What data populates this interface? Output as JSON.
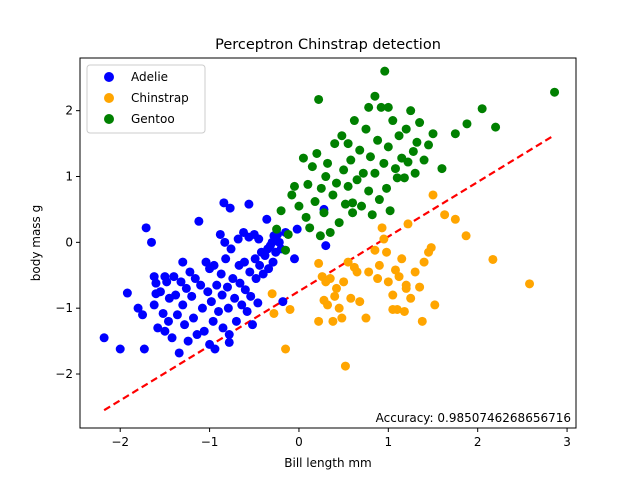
{
  "chart_data": {
    "type": "scatter",
    "title": "Perceptron Chinstrap detection",
    "xlabel": "Bill length mm",
    "ylabel": "body mass g",
    "xlim": [
      -2.45,
      3.1
    ],
    "ylim": [
      -2.82,
      2.8
    ],
    "xticks": [
      -2,
      -1,
      0,
      1,
      2,
      3
    ],
    "yticks": [
      -2,
      -1,
      0,
      1,
      2
    ],
    "tick_labels_x": [
      "−2",
      "−1",
      "0",
      "1",
      "2",
      "3"
    ],
    "tick_labels_y": [
      "−2",
      "−1",
      "0",
      "1",
      "2"
    ],
    "grid": false,
    "legend_placement": "top-left",
    "annotation": "Accuracy: 0.9850746268656716",
    "decision_line": {
      "x": [
        -2.18,
        2.86
      ],
      "y": [
        -2.55,
        1.63
      ],
      "color": "#ff0000",
      "style": "dashed"
    },
    "series": [
      {
        "name": "Adelie",
        "color": "#0000ff",
        "points": [
          [
            -2.18,
            -1.45
          ],
          [
            -2.0,
            -1.62
          ],
          [
            -1.92,
            -0.77
          ],
          [
            -1.8,
            -1.0
          ],
          [
            -1.75,
            -1.1
          ],
          [
            -1.73,
            -1.62
          ],
          [
            -1.71,
            0.22
          ],
          [
            -1.65,
            0.0
          ],
          [
            -1.62,
            -0.52
          ],
          [
            -1.62,
            -0.95
          ],
          [
            -1.6,
            -0.62
          ],
          [
            -1.58,
            -1.3
          ],
          [
            -1.55,
            -0.75
          ],
          [
            -1.52,
            -1.08
          ],
          [
            -1.5,
            -0.52
          ],
          [
            -1.5,
            -1.35
          ],
          [
            -1.48,
            -0.6
          ],
          [
            -1.46,
            -1.2
          ],
          [
            -1.45,
            -0.85
          ],
          [
            -1.42,
            -1.45
          ],
          [
            -1.4,
            -0.52
          ],
          [
            -1.38,
            -0.8
          ],
          [
            -1.36,
            -1.1
          ],
          [
            -1.34,
            -1.68
          ],
          [
            -1.32,
            -0.6
          ],
          [
            -1.3,
            -0.95
          ],
          [
            -1.28,
            -1.25
          ],
          [
            -1.26,
            -0.7
          ],
          [
            -1.24,
            -1.5
          ],
          [
            -1.22,
            -0.45
          ],
          [
            -1.2,
            -0.82
          ],
          [
            -1.18,
            -1.15
          ],
          [
            -1.16,
            -0.55
          ],
          [
            -1.14,
            -1.4
          ],
          [
            -1.12,
            0.32
          ],
          [
            -1.1,
            -0.65
          ],
          [
            -1.08,
            -1.0
          ],
          [
            -1.06,
            -1.35
          ],
          [
            -1.04,
            -0.3
          ],
          [
            -1.02,
            -0.75
          ],
          [
            -1.0,
            -1.55
          ],
          [
            -1.0,
            -0.4
          ],
          [
            -0.98,
            -0.9
          ],
          [
            -0.96,
            -1.2
          ],
          [
            -0.95,
            -0.35
          ],
          [
            -0.94,
            -1.62
          ],
          [
            -0.92,
            -0.65
          ],
          [
            -0.9,
            -1.05
          ],
          [
            -0.88,
            0.12
          ],
          [
            -0.87,
            -0.48
          ],
          [
            -0.86,
            -0.8
          ],
          [
            -0.85,
            -1.3
          ],
          [
            -0.84,
            0.6
          ],
          [
            -0.83,
            0.0
          ],
          [
            -0.82,
            -0.25
          ],
          [
            -0.8,
            -0.68
          ],
          [
            -0.79,
            -1.0
          ],
          [
            -0.78,
            -1.4
          ],
          [
            -0.77,
            0.52
          ],
          [
            -0.76,
            -0.1
          ],
          [
            -0.74,
            -0.55
          ],
          [
            -0.72,
            -0.85
          ],
          [
            -0.7,
            -1.2
          ],
          [
            -0.68,
            0.05
          ],
          [
            -0.67,
            -0.35
          ],
          [
            -0.66,
            -0.62
          ],
          [
            -0.64,
            -0.95
          ],
          [
            -0.62,
            0.15
          ],
          [
            -0.61,
            -0.3
          ],
          [
            -0.6,
            -0.72
          ],
          [
            -0.58,
            -1.05
          ],
          [
            -0.56,
            0.08
          ],
          [
            -0.55,
            -0.45
          ],
          [
            -0.54,
            -0.82
          ],
          [
            -0.52,
            -1.25
          ],
          [
            -0.5,
            0.12
          ],
          [
            -0.49,
            -0.25
          ],
          [
            -0.48,
            -0.55
          ],
          [
            -0.46,
            -0.92
          ],
          [
            -0.45,
            0.05
          ],
          [
            -0.44,
            -0.35
          ],
          [
            -0.42,
            -0.15
          ],
          [
            -0.4,
            -0.48
          ],
          [
            -0.38,
            -0.2
          ],
          [
            -0.36,
            0.35
          ],
          [
            -0.35,
            -0.1
          ],
          [
            -0.34,
            -0.4
          ],
          [
            -0.32,
            -0.05
          ],
          [
            -0.3,
            0.0
          ],
          [
            -0.29,
            -0.3
          ],
          [
            -0.28,
            0.1
          ],
          [
            -0.26,
            -0.15
          ],
          [
            -0.24,
            0.12
          ],
          [
            -0.22,
            0.0
          ],
          [
            -0.2,
            -0.1
          ],
          [
            -0.18,
            -0.9
          ],
          [
            -0.15,
            0.15
          ],
          [
            -0.05,
            -0.25
          ],
          [
            -0.02,
            0.2
          ],
          [
            0.28,
            0.5
          ],
          [
            0.3,
            -0.05
          ],
          [
            -0.78,
            -1.52
          ],
          [
            -0.56,
            0.58
          ],
          [
            -1.6,
            -0.78
          ],
          [
            -1.3,
            -0.3
          ]
        ]
      },
      {
        "name": "Chinstrap",
        "color": "#ffa500",
        "points": [
          [
            -0.3,
            -0.78
          ],
          [
            -0.28,
            -1.08
          ],
          [
            -0.15,
            -1.62
          ],
          [
            -0.1,
            -1.02
          ],
          [
            0.22,
            -0.32
          ],
          [
            0.22,
            -1.2
          ],
          [
            0.26,
            -0.52
          ],
          [
            0.28,
            -0.88
          ],
          [
            0.3,
            -0.6
          ],
          [
            0.32,
            -0.95
          ],
          [
            0.35,
            -0.55
          ],
          [
            0.38,
            -1.2
          ],
          [
            0.4,
            -0.82
          ],
          [
            0.42,
            -0.7
          ],
          [
            0.45,
            -1.0
          ],
          [
            0.48,
            -1.15
          ],
          [
            0.5,
            -0.6
          ],
          [
            0.52,
            -1.88
          ],
          [
            0.55,
            -0.3
          ],
          [
            0.58,
            -0.85
          ],
          [
            0.62,
            -0.38
          ],
          [
            0.65,
            -0.45
          ],
          [
            0.68,
            -0.9
          ],
          [
            0.75,
            -1.15
          ],
          [
            0.78,
            -0.45
          ],
          [
            0.85,
            -0.12
          ],
          [
            0.88,
            -0.55
          ],
          [
            0.9,
            -0.35
          ],
          [
            0.93,
            0.22
          ],
          [
            0.95,
            0.05
          ],
          [
            0.98,
            -0.15
          ],
          [
            1.0,
            -0.6
          ],
          [
            1.05,
            -0.8
          ],
          [
            1.08,
            -0.42
          ],
          [
            1.1,
            -1.02
          ],
          [
            1.12,
            -0.52
          ],
          [
            1.15,
            -0.25
          ],
          [
            1.18,
            -1.05
          ],
          [
            1.2,
            -0.65
          ],
          [
            1.22,
            0.28
          ],
          [
            1.25,
            -0.85
          ],
          [
            1.3,
            -0.45
          ],
          [
            1.35,
            -0.68
          ],
          [
            1.38,
            -1.2
          ],
          [
            1.4,
            -0.3
          ],
          [
            1.45,
            -0.15
          ],
          [
            1.48,
            -0.08
          ],
          [
            1.5,
            0.72
          ],
          [
            1.52,
            -0.95
          ],
          [
            1.63,
            0.42
          ],
          [
            1.75,
            0.35
          ],
          [
            1.87,
            0.1
          ],
          [
            2.17,
            -0.26
          ],
          [
            2.58,
            -0.63
          ],
          [
            1.05,
            -1.02
          ],
          [
            1.2,
            -0.7
          ]
        ]
      },
      {
        "name": "Gentoo",
        "color": "#008000",
        "points": [
          [
            -0.25,
            0.2
          ],
          [
            -0.2,
            0.48
          ],
          [
            -0.15,
            -0.12
          ],
          [
            -0.12,
            0.12
          ],
          [
            -0.08,
            0.72
          ],
          [
            -0.05,
            0.85
          ],
          [
            0.0,
            0.55
          ],
          [
            0.05,
            1.28
          ],
          [
            0.08,
            0.38
          ],
          [
            0.1,
            0.88
          ],
          [
            0.12,
            0.22
          ],
          [
            0.15,
            1.15
          ],
          [
            0.18,
            0.62
          ],
          [
            0.2,
            1.35
          ],
          [
            0.22,
            2.17
          ],
          [
            0.24,
            0.1
          ],
          [
            0.25,
            0.82
          ],
          [
            0.28,
            0.45
          ],
          [
            0.3,
            1.0
          ],
          [
            0.32,
            1.2
          ],
          [
            0.35,
            0.15
          ],
          [
            0.38,
            0.72
          ],
          [
            0.4,
            1.5
          ],
          [
            0.42,
            0.9
          ],
          [
            0.45,
            0.3
          ],
          [
            0.48,
            1.62
          ],
          [
            0.5,
            1.1
          ],
          [
            0.52,
            0.58
          ],
          [
            0.55,
            0.85
          ],
          [
            0.58,
            1.25
          ],
          [
            0.6,
            0.45
          ],
          [
            0.62,
            1.85
          ],
          [
            0.65,
            0.95
          ],
          [
            0.68,
            1.4
          ],
          [
            0.7,
            0.55
          ],
          [
            0.72,
            1.05
          ],
          [
            0.75,
            1.72
          ],
          [
            0.78,
            0.78
          ],
          [
            0.8,
            1.3
          ],
          [
            0.82,
            0.42
          ],
          [
            0.85,
            1.05
          ],
          [
            0.88,
            1.55
          ],
          [
            0.9,
            0.65
          ],
          [
            0.92,
            2.05
          ],
          [
            0.95,
            1.2
          ],
          [
            0.98,
            0.82
          ],
          [
            1.0,
            1.45
          ],
          [
            1.02,
            0.48
          ],
          [
            1.05,
            1.85
          ],
          [
            1.08,
            1.12
          ],
          [
            1.1,
            0.98
          ],
          [
            1.12,
            1.62
          ],
          [
            1.15,
            1.28
          ],
          [
            1.18,
            0.98
          ],
          [
            1.2,
            1.72
          ],
          [
            1.22,
            1.22
          ],
          [
            1.25,
            2.0
          ],
          [
            1.28,
            1.38
          ],
          [
            1.3,
            1.05
          ],
          [
            1.32,
            1.52
          ],
          [
            1.35,
            1.82
          ],
          [
            1.4,
            1.25
          ],
          [
            1.45,
            1.48
          ],
          [
            1.5,
            1.65
          ],
          [
            1.6,
            1.12
          ],
          [
            1.75,
            1.65
          ],
          [
            1.88,
            1.8
          ],
          [
            2.05,
            2.03
          ],
          [
            2.2,
            1.75
          ],
          [
            2.86,
            2.28
          ],
          [
            0.96,
            2.6
          ],
          [
            0.85,
            2.22
          ],
          [
            0.78,
            2.05
          ],
          [
            1.0,
            2.05
          ],
          [
            0.6,
            0.6
          ],
          [
            0.55,
            1.5
          ]
        ]
      }
    ]
  }
}
